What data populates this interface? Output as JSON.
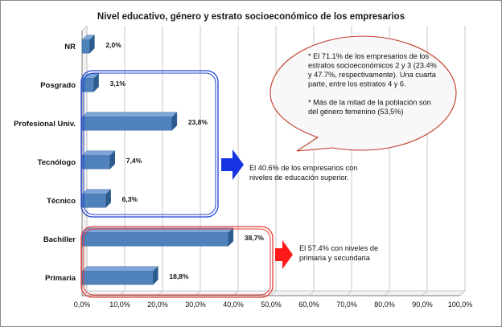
{
  "chart_data": {
    "type": "bar",
    "orientation": "horizontal",
    "title": "Nivel educativo, género y estrato socioeconómico de los empresarios",
    "categories": [
      "NR",
      "Posgrado",
      "Profesional Univ.",
      "Tecnólogo",
      "Técnico",
      "Bachiller",
      "Primaria"
    ],
    "values": [
      2.0,
      3.1,
      23.8,
      7.4,
      6.3,
      38.7,
      18.8
    ],
    "value_labels": [
      "2,0%",
      "3,1%",
      "23,8%",
      "7,4%",
      "6,3%",
      "38,7%",
      "18,8%"
    ],
    "xlim": [
      0,
      100
    ],
    "x_ticks": [
      0,
      10,
      20,
      30,
      40,
      50,
      60,
      70,
      80,
      90,
      100
    ],
    "x_tick_labels": [
      "0,0%",
      "10,0%",
      "20,0%",
      "30,0%",
      "40,0%",
      "50,0%",
      "60,0%",
      "70,0%",
      "80,0%",
      "90,0%",
      "100,0%"
    ],
    "xlabel": "",
    "ylabel": "",
    "grid": true,
    "bar_color": "#4f81bd",
    "bar_color_dark": "#2c5b8e",
    "grid_color": "#bdbdbd"
  },
  "callout": {
    "lines": [
      "* El 71.1% de los empresarios de los",
      "estratos socioeconómicos 2 y 3 (23.4%",
      "y 47.7%, respectivamente). Una cuarta",
      "parte, entre los estratos 4 y 6.",
      "",
      "* Más de la mitad de la población son",
      "del género femenino (53,5%)"
    ],
    "fill": "#f8f8f8",
    "stroke": "#c0392b"
  },
  "group_higher": {
    "lines": [
      "El 40.6%  de los empresarios con",
      "niveles de educación superior."
    ],
    "box_color": "#1f3fd1",
    "arrow_color": "#1533e0"
  },
  "group_basic": {
    "lines": [
      "El 57.4% con niveles de",
      "primaria y secundaria"
    ],
    "box_color": "#e53935",
    "arrow_color": "#ff1a1a"
  }
}
